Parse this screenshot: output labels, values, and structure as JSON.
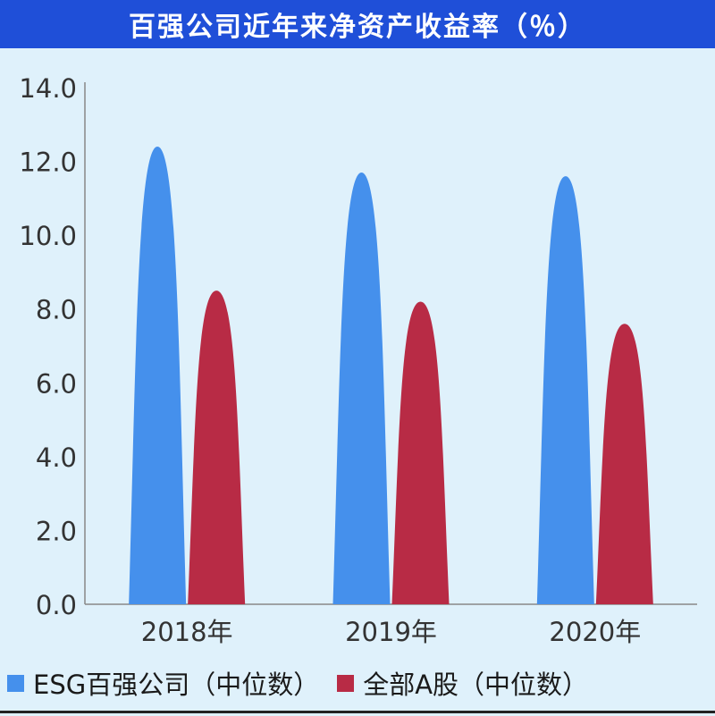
{
  "title": "百强公司近年来净资产收益率（％）",
  "colors": {
    "title_bg": "#1f4fd8",
    "background": "#dff1fb",
    "esg": "#4590ec",
    "all_a": "#b82b45"
  },
  "chart_data": {
    "type": "bar",
    "bar_shape": "rounded-peak",
    "categories": [
      "2018年",
      "2019年",
      "2020年"
    ],
    "series": [
      {
        "name": "ESG百强公司（中位数）",
        "values": [
          12.4,
          11.7,
          11.6
        ]
      },
      {
        "name": "全部A股（中位数）",
        "values": [
          8.5,
          8.2,
          7.6
        ]
      }
    ],
    "ylim": [
      0,
      14
    ],
    "yticks": [
      "0.0",
      "2.0",
      "4.0",
      "6.0",
      "8.0",
      "10.0",
      "12.0",
      "14.0"
    ],
    "grid": false,
    "legend_position": "bottom-left"
  }
}
